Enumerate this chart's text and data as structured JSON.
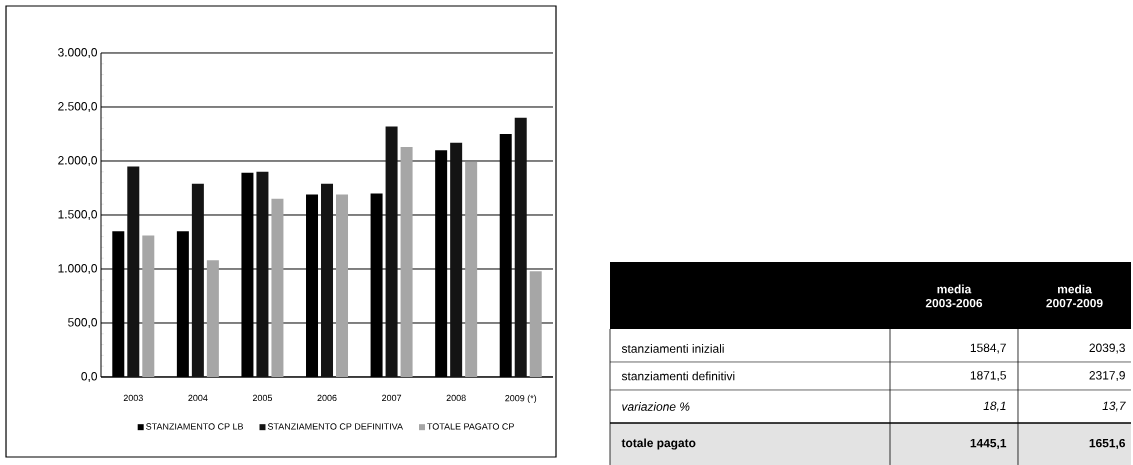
{
  "chart_data": [
    {
      "type": "bar",
      "categories": [
        "2003",
        "2004",
        "2005",
        "2006",
        "2007",
        "2008",
        "2009 (*)"
      ],
      "series": [
        {
          "name": "STANZIAMENTO CP LB",
          "color": "#000000",
          "values": [
            1350,
            1350,
            1890,
            1690,
            1700,
            2100,
            2250
          ]
        },
        {
          "name": "STANZIAMENTO CP DEFINITIVA",
          "color": "#141414",
          "values": [
            1950,
            1790,
            1900,
            1790,
            2320,
            2170,
            2400
          ]
        },
        {
          "name": "TOTALE PAGATO CP",
          "color": "#a6a6a6",
          "values": [
            1310,
            1080,
            1650,
            1690,
            2130,
            1990,
            980
          ]
        }
      ],
      "ylim": [
        0,
        3000
      ],
      "yticks": [
        {
          "value": 0,
          "label": "0,0"
        },
        {
          "value": 500,
          "label": "500,0"
        },
        {
          "value": 1000,
          "label": "1.000,0"
        },
        {
          "value": 1500,
          "label": "1.500,0"
        },
        {
          "value": 2000,
          "label": "2.000,0"
        },
        {
          "value": 2500,
          "label": "2.500,0"
        },
        {
          "value": 3000,
          "label": "3.000,0"
        }
      ],
      "grid": "y",
      "legend": "bottom"
    },
    {
      "type": "other",
      "annotations": [
        "media 2003-2006",
        "media 2007-2009",
        "stanziamenti iniziali",
        "1584,7",
        "2039,3",
        "stanziamenti definitivi",
        "1871,5",
        "2317,9",
        "variazione  %",
        "18,1",
        "13,7",
        "totale pagato",
        "1445,1",
        "1651,6"
      ]
    }
  ]
}
